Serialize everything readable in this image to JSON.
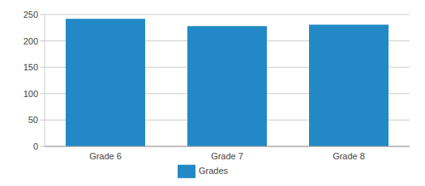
{
  "chart_data": {
    "type": "bar",
    "categories": [
      "Grade 6",
      "Grade 7",
      "Grade 8"
    ],
    "series": [
      {
        "name": "Grades",
        "color": "#2389c6",
        "values": [
          242,
          228,
          231
        ]
      }
    ],
    "ylim": [
      0,
      250
    ],
    "yticks": [
      0,
      50,
      100,
      150,
      200,
      250
    ],
    "grid": true,
    "legend": "bottom"
  }
}
